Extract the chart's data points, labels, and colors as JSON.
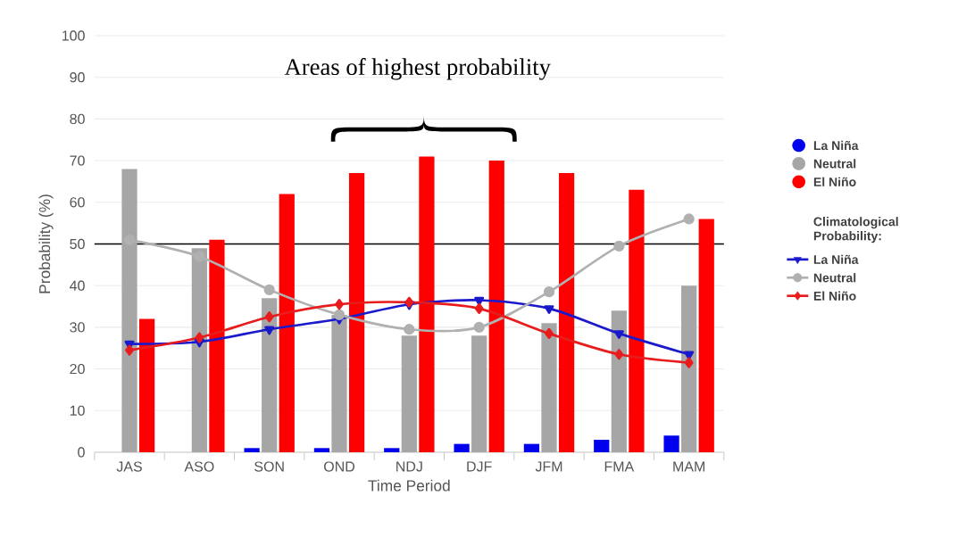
{
  "chart_data": {
    "type": "bar",
    "categories": [
      "JAS",
      "ASO",
      "SON",
      "OND",
      "NDJ",
      "DJF",
      "JFM",
      "FMA",
      "MAM"
    ],
    "xlabel": "Time Period",
    "ylabel": "Probability (%)",
    "ylim": [
      0,
      100
    ],
    "yticks": [
      0,
      10,
      20,
      30,
      40,
      50,
      60,
      70,
      80,
      90,
      100
    ],
    "grid": "y",
    "legend": "right",
    "legend_title": "Climatological Probability:",
    "annotations": [
      "Areas of highest probability"
    ],
    "ref_lines": [
      {
        "axis": "y",
        "value": 50,
        "color": "#000000"
      }
    ],
    "series": [
      {
        "name": "La Niña",
        "color": "#0000ee",
        "values": [
          0,
          0,
          1,
          1,
          1,
          2,
          2,
          3,
          4
        ]
      },
      {
        "name": "Neutral",
        "color": "#a6a6a6",
        "values": [
          68,
          49,
          37,
          33,
          28,
          28,
          31,
          34,
          40
        ]
      },
      {
        "name": "El Niño",
        "color": "#ff0000",
        "values": [
          32,
          51,
          62,
          67,
          71,
          70,
          67,
          63,
          56
        ]
      },
      {
        "name": "La Niña",
        "type": "line",
        "marker": "triangle",
        "color": "#1a1acc",
        "values": [
          26,
          26.5,
          29.5,
          32,
          35.5,
          36.5,
          34.5,
          28.5,
          23.5
        ]
      },
      {
        "name": "Neutral",
        "type": "line",
        "marker": "circle",
        "color": "#b0b0b0",
        "values": [
          51,
          47,
          39,
          33,
          29.5,
          30,
          38.5,
          49.5,
          56
        ]
      },
      {
        "name": "El Niño",
        "type": "line",
        "marker": "diamond",
        "color": "#e81c1c",
        "values": [
          24.5,
          27.5,
          32.5,
          35.5,
          36,
          34.5,
          28.5,
          23.5,
          21.5
        ]
      }
    ]
  }
}
